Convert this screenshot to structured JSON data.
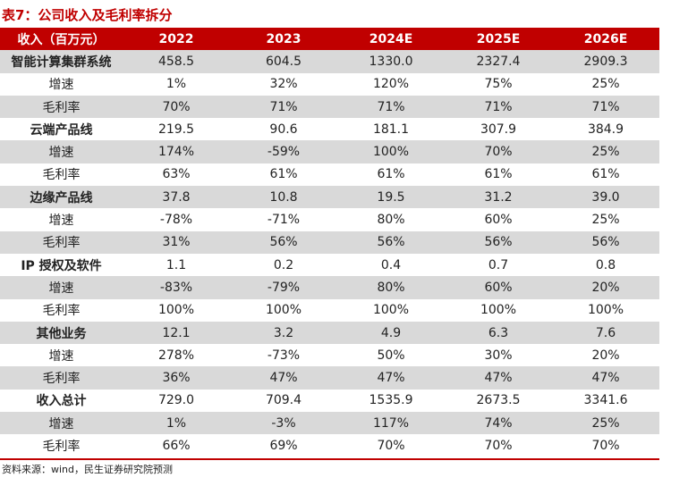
{
  "title": "表7：公司收入及毛利率拆分",
  "table": {
    "headers": [
      "收入（百万元）",
      "2022",
      "2023",
      "2024E",
      "2025E",
      "2026E"
    ],
    "rows": [
      {
        "label": "智能计算集群系统",
        "cat": true,
        "values": [
          "458.5",
          "604.5",
          "1330.0",
          "2327.4",
          "2909.3"
        ]
      },
      {
        "label": "增速",
        "cat": false,
        "values": [
          "1%",
          "32%",
          "120%",
          "75%",
          "25%"
        ]
      },
      {
        "label": "毛利率",
        "cat": false,
        "values": [
          "70%",
          "71%",
          "71%",
          "71%",
          "71%"
        ]
      },
      {
        "label": "云端产品线",
        "cat": true,
        "values": [
          "219.5",
          "90.6",
          "181.1",
          "307.9",
          "384.9"
        ]
      },
      {
        "label": "增速",
        "cat": false,
        "values": [
          "174%",
          "-59%",
          "100%",
          "70%",
          "25%"
        ]
      },
      {
        "label": "毛利率",
        "cat": false,
        "values": [
          "63%",
          "61%",
          "61%",
          "61%",
          "61%"
        ]
      },
      {
        "label": "边缘产品线",
        "cat": true,
        "values": [
          "37.8",
          "10.8",
          "19.5",
          "31.2",
          "39.0"
        ]
      },
      {
        "label": "增速",
        "cat": false,
        "values": [
          "-78%",
          "-71%",
          "80%",
          "60%",
          "25%"
        ]
      },
      {
        "label": "毛利率",
        "cat": false,
        "values": [
          "31%",
          "56%",
          "56%",
          "56%",
          "56%"
        ]
      },
      {
        "label": "IP 授权及软件",
        "cat": true,
        "values": [
          "1.1",
          "0.2",
          "0.4",
          "0.7",
          "0.8"
        ]
      },
      {
        "label": "增速",
        "cat": false,
        "values": [
          "-83%",
          "-79%",
          "80%",
          "60%",
          "20%"
        ]
      },
      {
        "label": "毛利率",
        "cat": false,
        "values": [
          "100%",
          "100%",
          "100%",
          "100%",
          "100%"
        ]
      },
      {
        "label": "其他业务",
        "cat": true,
        "values": [
          "12.1",
          "3.2",
          "4.9",
          "6.3",
          "7.6"
        ]
      },
      {
        "label": "增速",
        "cat": false,
        "values": [
          "278%",
          "-73%",
          "50%",
          "30%",
          "20%"
        ]
      },
      {
        "label": "毛利率",
        "cat": false,
        "values": [
          "36%",
          "47%",
          "47%",
          "47%",
          "47%"
        ]
      },
      {
        "label": "收入总计",
        "cat": true,
        "values": [
          "729.0",
          "709.4",
          "1535.9",
          "2673.5",
          "3341.6"
        ]
      },
      {
        "label": "增速",
        "cat": false,
        "values": [
          "1%",
          "-3%",
          "117%",
          "74%",
          "25%"
        ]
      },
      {
        "label": "毛利率",
        "cat": false,
        "values": [
          "66%",
          "69%",
          "70%",
          "70%",
          "70%"
        ]
      }
    ]
  },
  "source": "资料来源：wind，民生证券研究院预测",
  "colors": {
    "header_bg": "#c00000",
    "shade_bg": "#d9d9d9",
    "title": "#c00000"
  }
}
